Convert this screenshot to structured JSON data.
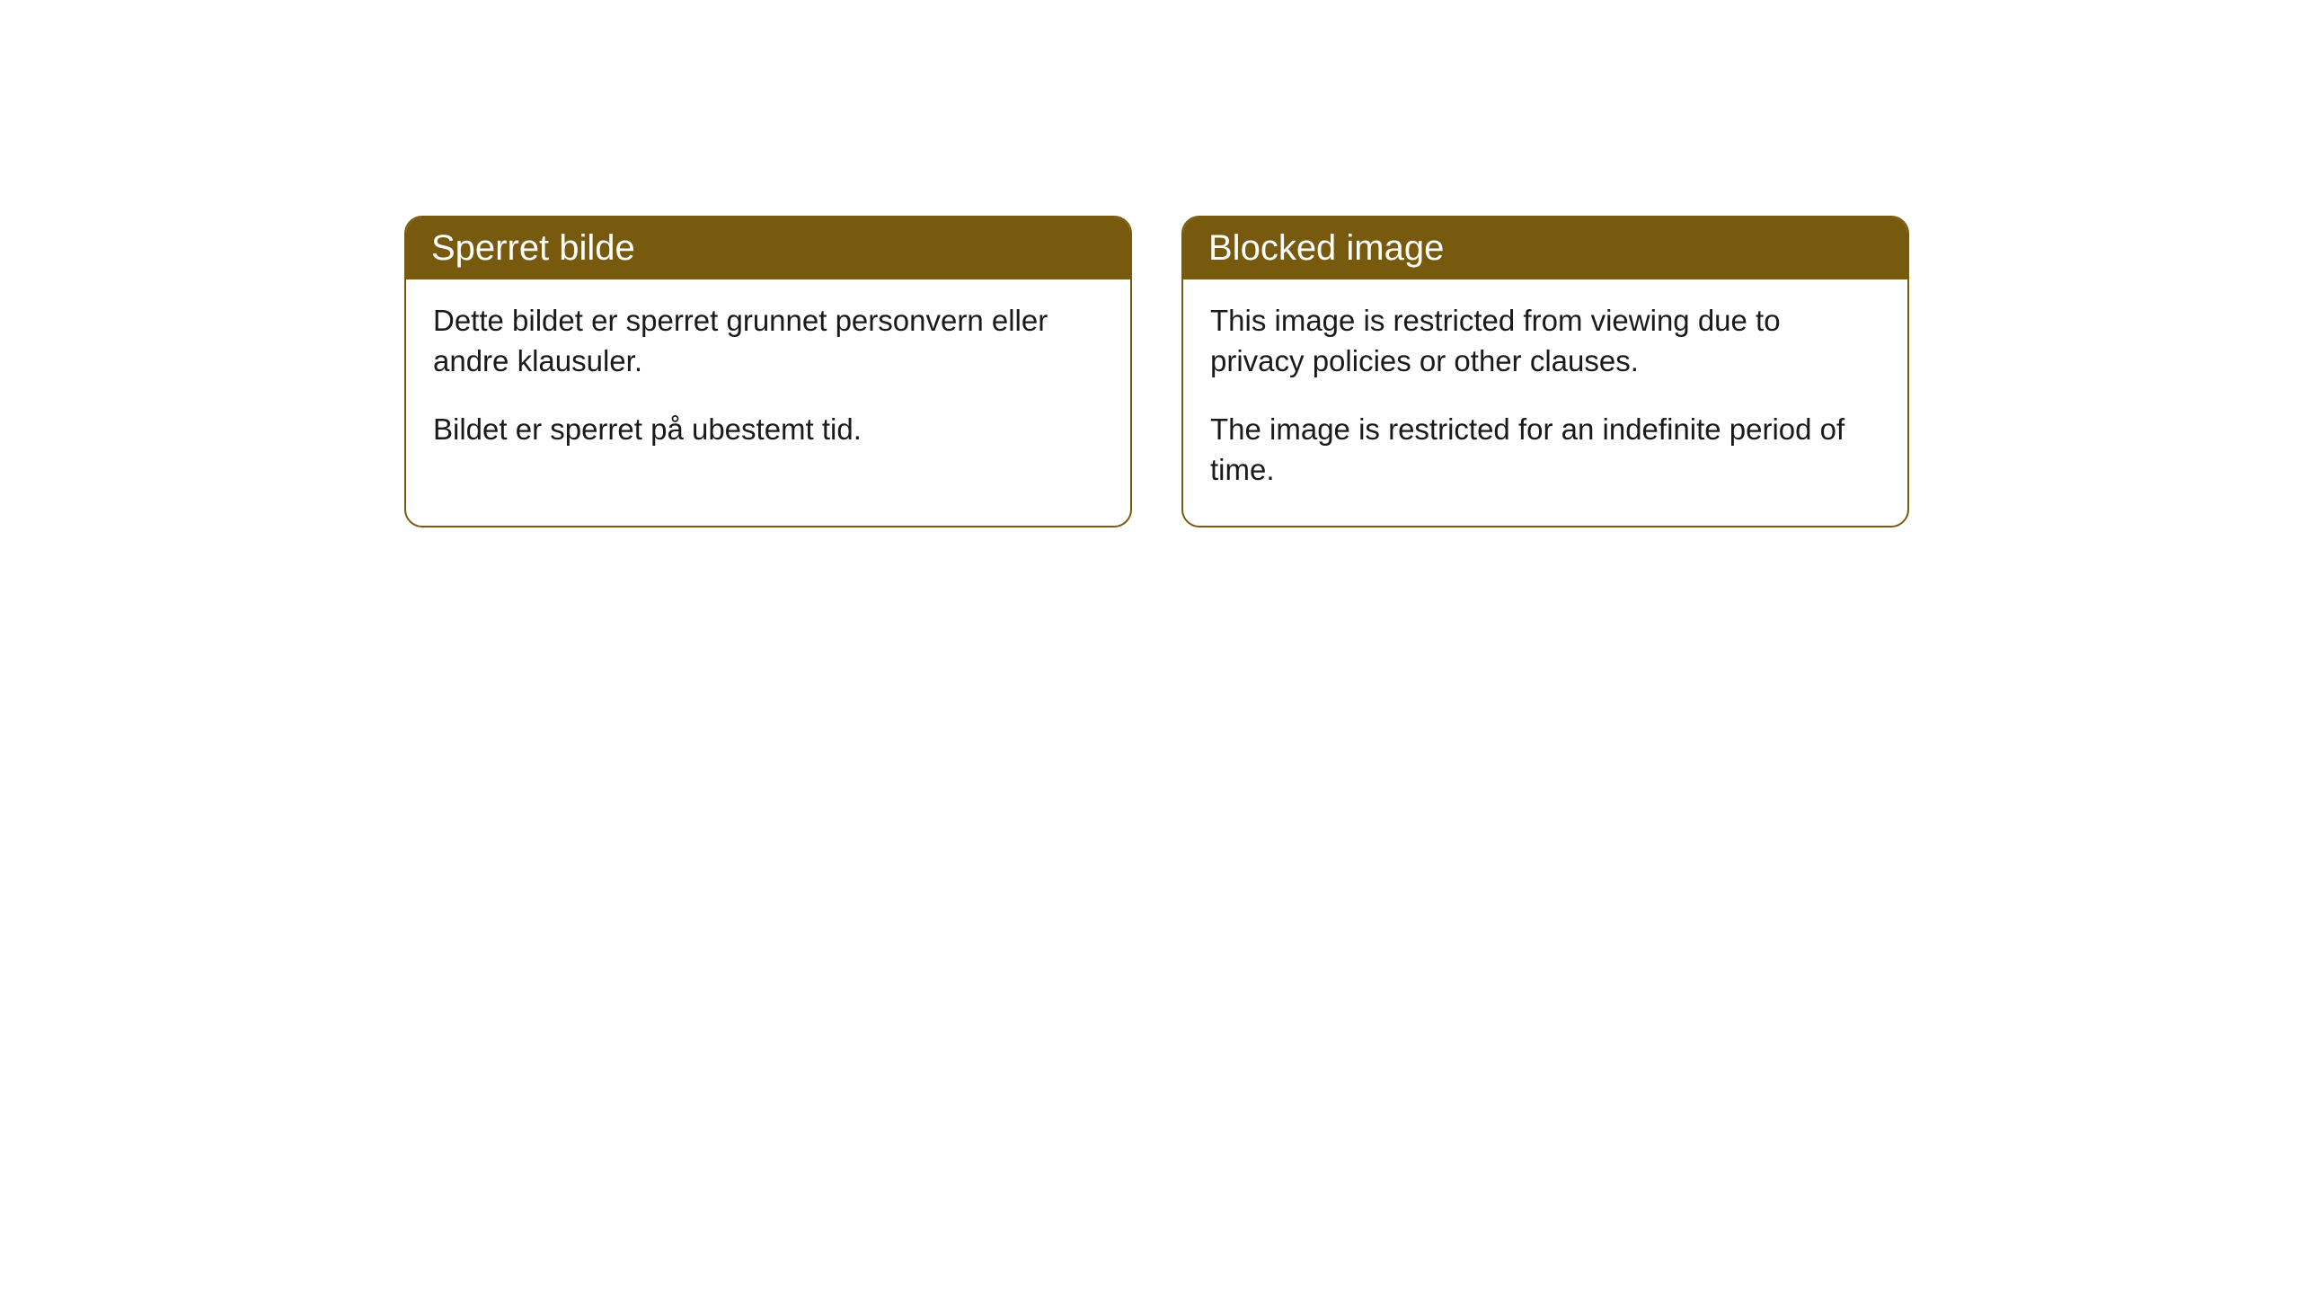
{
  "cards": [
    {
      "title": "Sperret bilde",
      "paragraph1": "Dette bildet er sperret grunnet personvern eller andre klausuler.",
      "paragraph2": "Bildet er sperret på ubestemt tid."
    },
    {
      "title": "Blocked image",
      "paragraph1": "This image is restricted from viewing due to privacy policies or other clauses.",
      "paragraph2": "The image is restricted for an indefinite period of time."
    }
  ],
  "styling": {
    "header_background": "#785a0f",
    "header_text_color": "#ffffff",
    "border_color": "#785a0f",
    "body_text_color": "#1a1a1a",
    "card_background": "#ffffff",
    "page_background": "#ffffff",
    "border_radius": 20,
    "header_fontsize": 40,
    "body_fontsize": 33
  }
}
